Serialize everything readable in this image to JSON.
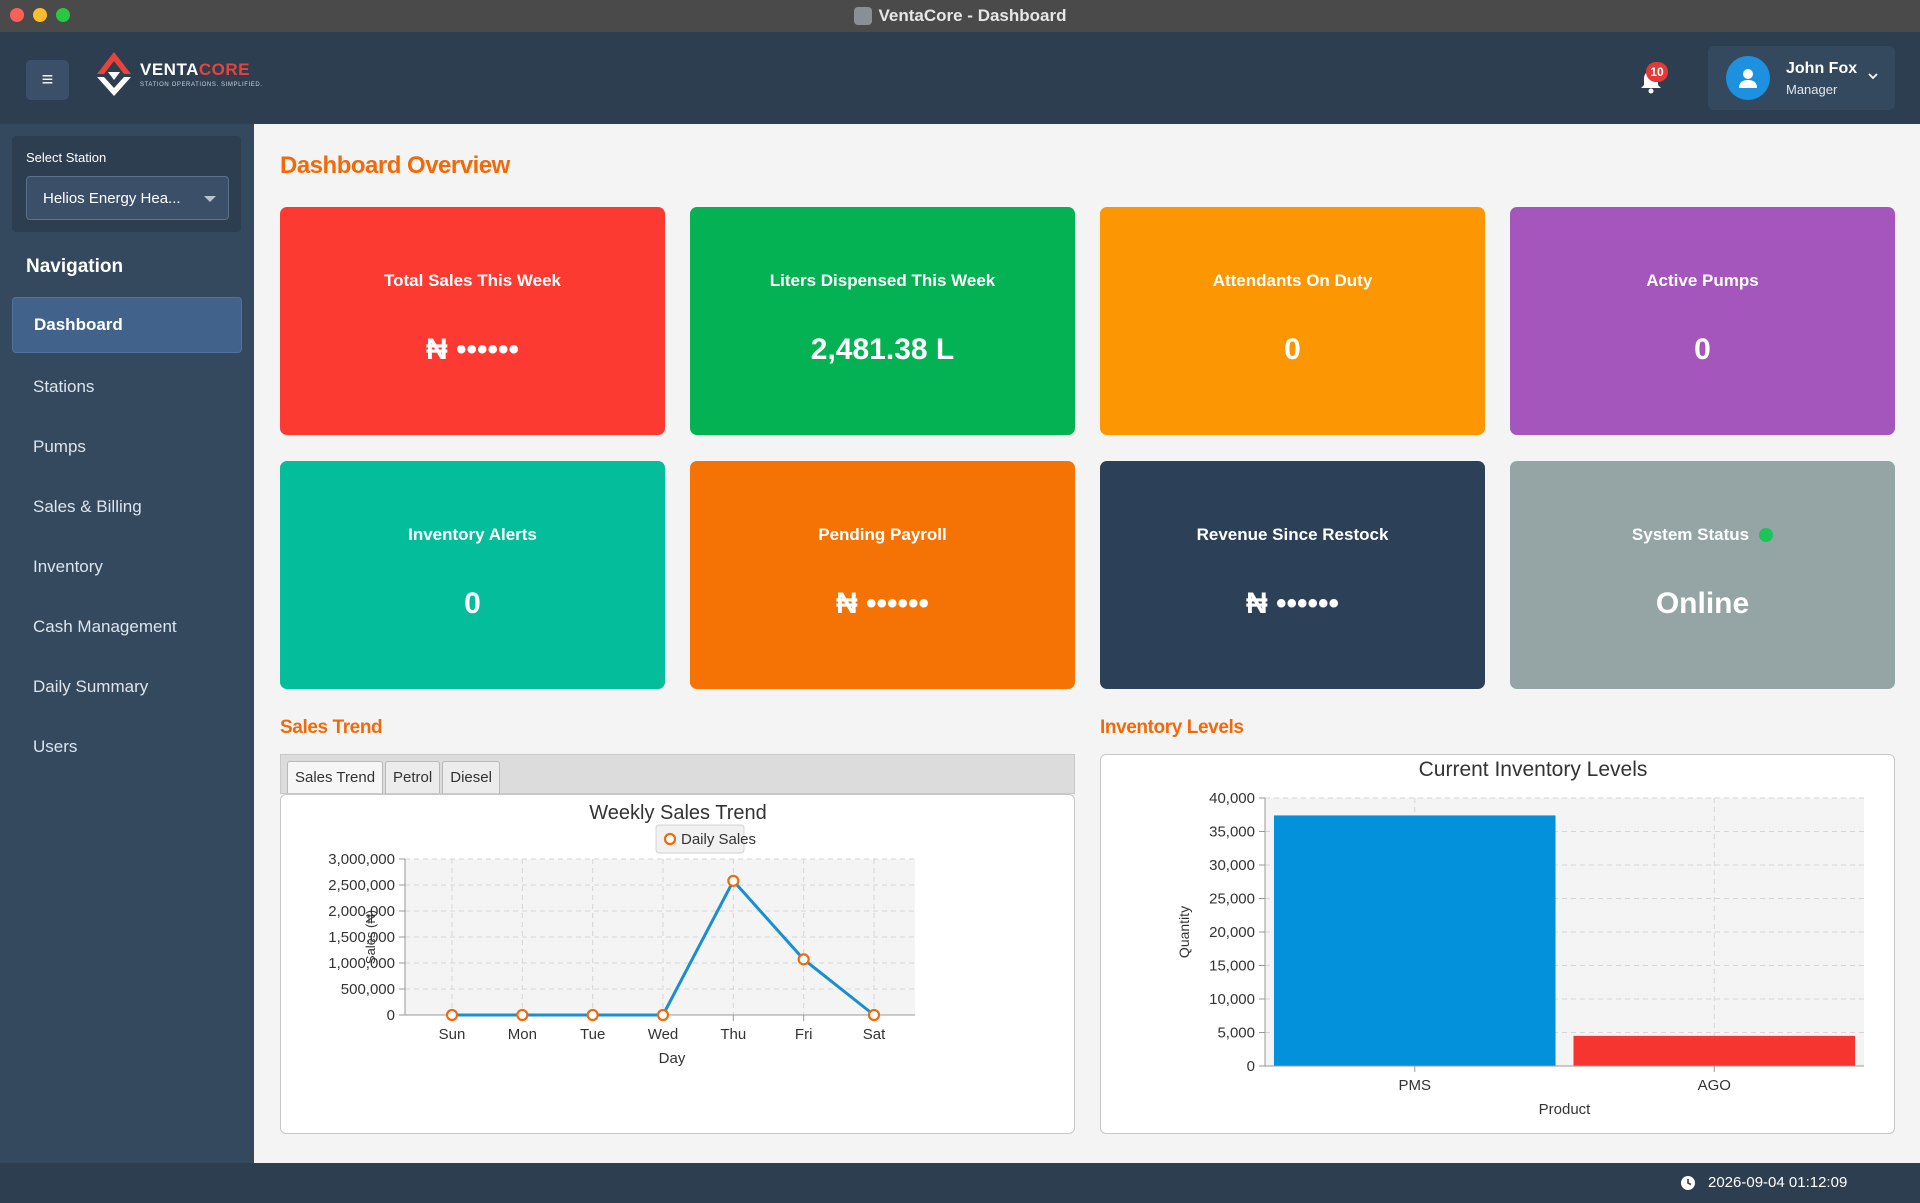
{
  "window": {
    "title": "VentaCore - Dashboard"
  },
  "header": {
    "logo_main": "VENTA",
    "logo_accent": "CORE",
    "logo_tagline": "STATION OPERATIONS. SIMPLIFIED.",
    "notifications_count": "10",
    "user_name": "John Fox",
    "user_role": "Manager"
  },
  "sidebar": {
    "select_station_label": "Select Station",
    "selected_station": "Helios Energy Hea...",
    "nav_heading": "Navigation",
    "items": [
      {
        "label": "Dashboard",
        "active": true
      },
      {
        "label": "Stations"
      },
      {
        "label": "Pumps"
      },
      {
        "label": "Sales & Billing"
      },
      {
        "label": "Inventory"
      },
      {
        "label": "Cash Management"
      },
      {
        "label": "Daily Summary"
      },
      {
        "label": "Users"
      }
    ]
  },
  "main": {
    "title": "Dashboard Overview",
    "cards": [
      {
        "label": "Total Sales This Week",
        "value": "₦ ••••••",
        "color": "#fc3a32"
      },
      {
        "label": "Liters Dispensed This Week",
        "value": "2,481.38 L",
        "color": "#04b153"
      },
      {
        "label": "Attendants On Duty",
        "value": "0",
        "color": "#fd9603"
      },
      {
        "label": "Active Pumps",
        "value": "0",
        "color": "#a456bc"
      },
      {
        "label": "Inventory Alerts",
        "value": "0",
        "color": "#04bd9b"
      },
      {
        "label": "Pending Payroll",
        "value": "₦ ••••••",
        "color": "#f47304"
      },
      {
        "label": "Revenue Since Restock",
        "value": "₦ ••••••",
        "color": "#2c4158"
      },
      {
        "label": "System Status",
        "value": "Online",
        "color": "#95a5a6",
        "status_dot_color": "#1dc45a"
      }
    ],
    "sales_trend_title": "Sales Trend",
    "inventory_levels_title": "Inventory Levels",
    "tabs": [
      "Sales Trend",
      "Petrol",
      "Diesel"
    ]
  },
  "chart_data": [
    {
      "type": "line",
      "title": "Weekly Sales Trend",
      "xlabel": "Day",
      "ylabel": "Sales (₦)",
      "categories": [
        "Sun",
        "Mon",
        "Tue",
        "Wed",
        "Thu",
        "Fri",
        "Sat"
      ],
      "series": [
        {
          "name": "Daily Sales",
          "values": [
            0,
            0,
            0,
            0,
            2580000,
            1070000,
            0
          ],
          "color": "#1a8fd0",
          "marker_color": "#f06a0a"
        }
      ],
      "ylim": [
        0,
        3000000
      ],
      "yticks": [
        "0",
        "500,000",
        "1,000,000",
        "1,500,000",
        "2,000,000",
        "2,500,000",
        "3,000,000"
      ],
      "grid": true,
      "legend": "top-center"
    },
    {
      "type": "bar",
      "title": "Current Inventory Levels",
      "xlabel": "Product",
      "ylabel": "Quantity",
      "categories": [
        "PMS",
        "AGO"
      ],
      "values": [
        37400,
        4500
      ],
      "colors": [
        "#0291da",
        "#f63530"
      ],
      "ylim": [
        0,
        40000
      ],
      "yticks": [
        "0",
        "5,000",
        "10,000",
        "15,000",
        "20,000",
        "25,000",
        "30,000",
        "35,000",
        "40,000"
      ],
      "grid": true
    }
  ],
  "footer": {
    "datetime": "2026-09-04 01:12:09"
  }
}
